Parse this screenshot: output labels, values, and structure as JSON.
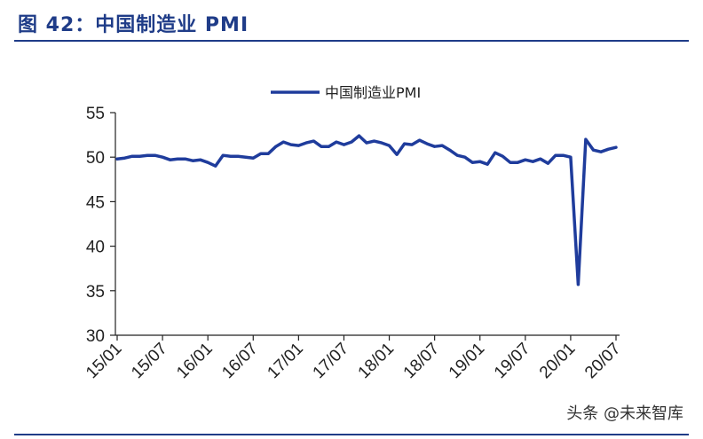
{
  "header": {
    "title": "图 42：中国制造业 PMI"
  },
  "watermark": "头条 @未来智库",
  "chart_data": {
    "type": "line",
    "title": "",
    "xlabel": "",
    "ylabel": "",
    "ylim": [
      30,
      55
    ],
    "yticks": [
      30,
      35,
      40,
      45,
      50,
      55
    ],
    "xticks": [
      "15/01",
      "15/07",
      "16/01",
      "16/07",
      "17/01",
      "17/07",
      "18/01",
      "18/07",
      "19/01",
      "19/07",
      "20/01",
      "20/07"
    ],
    "grid": false,
    "legend": "top-center",
    "series": [
      {
        "name": "中国制造业PMI",
        "color": "#1f3c9c",
        "x": [
          "15/01",
          "15/02",
          "15/03",
          "15/04",
          "15/05",
          "15/06",
          "15/07",
          "15/08",
          "15/09",
          "15/10",
          "15/11",
          "15/12",
          "16/01",
          "16/02",
          "16/03",
          "16/04",
          "16/05",
          "16/06",
          "16/07",
          "16/08",
          "16/09",
          "16/10",
          "16/11",
          "16/12",
          "17/01",
          "17/02",
          "17/03",
          "17/04",
          "17/05",
          "17/06",
          "17/07",
          "17/08",
          "17/09",
          "17/10",
          "17/11",
          "17/12",
          "18/01",
          "18/02",
          "18/03",
          "18/04",
          "18/05",
          "18/06",
          "18/07",
          "18/08",
          "18/09",
          "18/10",
          "18/11",
          "18/12",
          "19/01",
          "19/02",
          "19/03",
          "19/04",
          "19/05",
          "19/06",
          "19/07",
          "19/08",
          "19/09",
          "19/10",
          "19/11",
          "19/12",
          "20/01",
          "20/02",
          "20/03",
          "20/04",
          "20/05",
          "20/06",
          "20/07"
        ],
        "values": [
          49.8,
          49.9,
          50.1,
          50.1,
          50.2,
          50.2,
          50.0,
          49.7,
          49.8,
          49.8,
          49.6,
          49.7,
          49.4,
          49.0,
          50.2,
          50.1,
          50.1,
          50.0,
          49.9,
          50.4,
          50.4,
          51.2,
          51.7,
          51.4,
          51.3,
          51.6,
          51.8,
          51.2,
          51.2,
          51.7,
          51.4,
          51.7,
          52.4,
          51.6,
          51.8,
          51.6,
          51.3,
          50.3,
          51.5,
          51.4,
          51.9,
          51.5,
          51.2,
          51.3,
          50.8,
          50.2,
          50.0,
          49.4,
          49.5,
          49.2,
          50.5,
          50.1,
          49.4,
          49.4,
          49.7,
          49.5,
          49.8,
          49.3,
          50.2,
          50.2,
          50.0,
          35.7,
          52.0,
          50.8,
          50.6,
          50.9,
          51.1
        ]
      }
    ]
  }
}
